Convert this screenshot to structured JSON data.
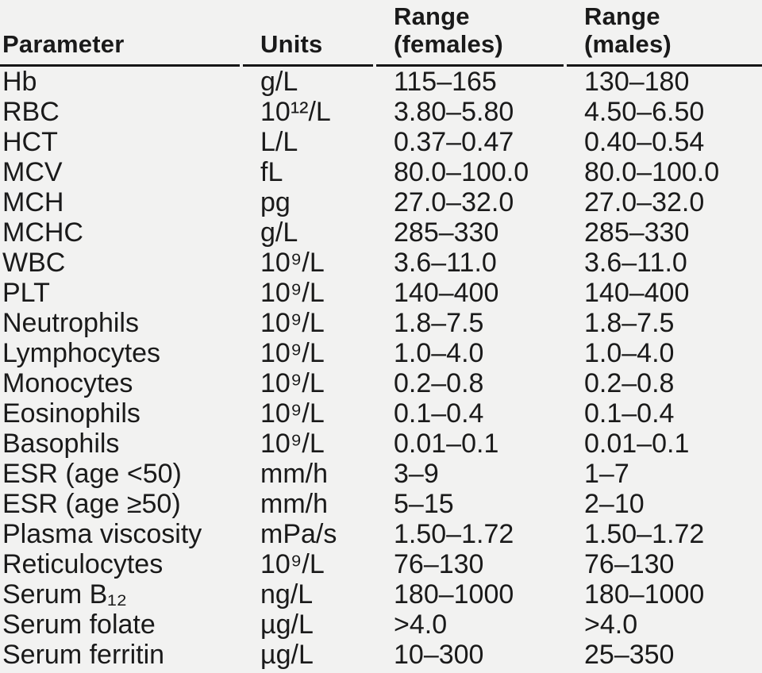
{
  "page": {
    "background_color": "#f2f2f1",
    "text_color": "#1a1a1a",
    "rule_color": "#161616",
    "description": "Haematology reference range table"
  },
  "table": {
    "columns": [
      {
        "key": "parameter",
        "label": "Parameter"
      },
      {
        "key": "units",
        "label": "Units"
      },
      {
        "key": "female",
        "label": "Range\n(females)"
      },
      {
        "key": "male",
        "label": "Range\n(males)"
      }
    ],
    "rows": [
      {
        "parameter": "Hb",
        "units": "g/L",
        "female": "115–165",
        "male": "130–180"
      },
      {
        "parameter": "RBC",
        "units": "10¹²/L",
        "female": "3.80–5.80",
        "male": "4.50–6.50"
      },
      {
        "parameter": "HCT",
        "units": "L/L",
        "female": "0.37–0.47",
        "male": "0.40–0.54"
      },
      {
        "parameter": "MCV",
        "units": "fL",
        "female": "80.0–100.0",
        "male": "80.0–100.0"
      },
      {
        "parameter": "MCH",
        "units": "pg",
        "female": "27.0–32.0",
        "male": "27.0–32.0"
      },
      {
        "parameter": "MCHC",
        "units": "g/L",
        "female": "285–330",
        "male": "285–330"
      },
      {
        "parameter": "WBC",
        "units": "10⁹/L",
        "female": "3.6–11.0",
        "male": "3.6–11.0"
      },
      {
        "parameter": "PLT",
        "units": "10⁹/L",
        "female": "140–400",
        "male": "140–400"
      },
      {
        "parameter": "Neutrophils",
        "units": "10⁹/L",
        "female": "1.8–7.5",
        "male": "1.8–7.5"
      },
      {
        "parameter": "Lymphocytes",
        "units": "10⁹/L",
        "female": "1.0–4.0",
        "male": "1.0–4.0"
      },
      {
        "parameter": "Monocytes",
        "units": "10⁹/L",
        "female": "0.2–0.8",
        "male": "0.2–0.8"
      },
      {
        "parameter": "Eosinophils",
        "units": "10⁹/L",
        "female": "0.1–0.4",
        "male": "0.1–0.4"
      },
      {
        "parameter": "Basophils",
        "units": "10⁹/L",
        "female": "0.01–0.1",
        "male": "0.01–0.1"
      },
      {
        "parameter": "ESR (age <50)",
        "units": "mm/h",
        "female": "3–9",
        "male": "1–7"
      },
      {
        "parameter": "ESR (age ≥50)",
        "units": "mm/h",
        "female": "5–15",
        "male": "2–10"
      },
      {
        "parameter": "Plasma viscosity",
        "units": "mPa/s",
        "female": "1.50–1.72",
        "male": "1.50–1.72"
      },
      {
        "parameter": "Reticulocytes",
        "units": "10⁹/L",
        "female": "76–130",
        "male": "76–130"
      },
      {
        "parameter": "Serum B₁₂",
        "units": "ng/L",
        "female": "180–1000",
        "male": "180–1000"
      },
      {
        "parameter": "Serum folate",
        "units": "µg/L",
        "female": ">4.0",
        "male": ">4.0"
      },
      {
        "parameter": "Serum ferritin",
        "units": "µg/L",
        "female": "10–300",
        "male": "25–350"
      }
    ]
  }
}
